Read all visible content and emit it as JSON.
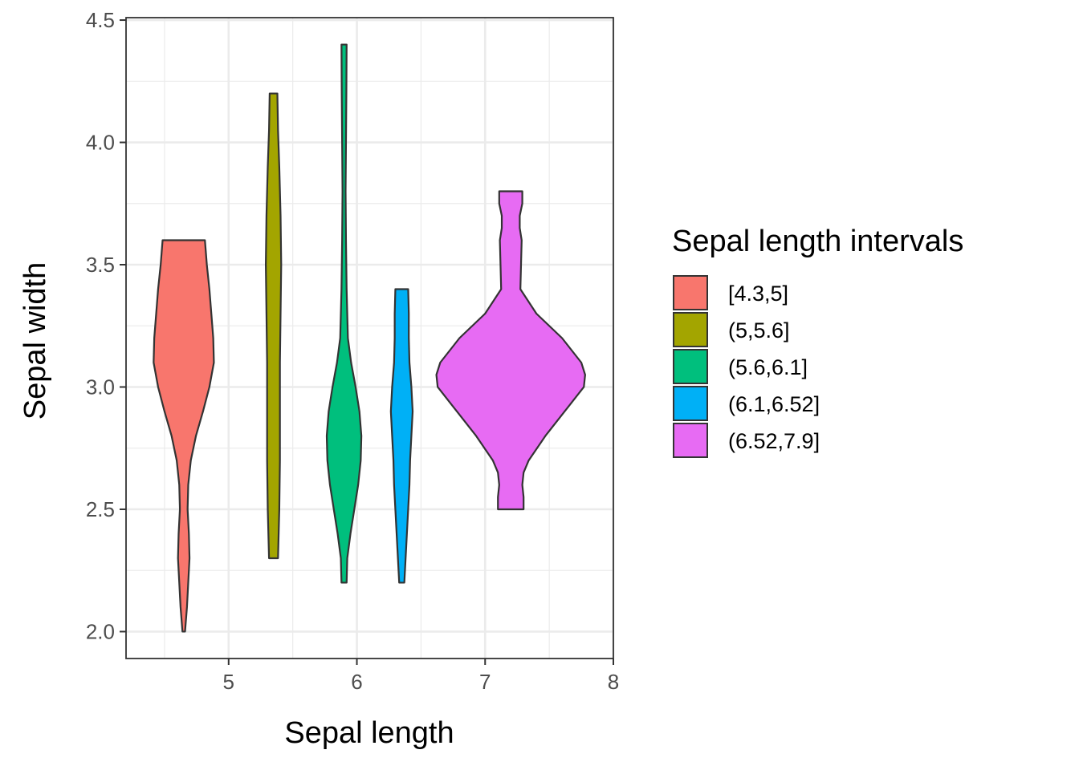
{
  "chart_data": {
    "type": "violin",
    "xlabel": "Sepal length",
    "ylabel": "Sepal width",
    "xlim": [
      4.2,
      8.0
    ],
    "ylim": [
      1.89,
      4.51
    ],
    "x_ticks": [
      5,
      6,
      7,
      8
    ],
    "x_tick_labels": [
      "5",
      "6",
      "7",
      "8"
    ],
    "y_ticks": [
      2.0,
      2.5,
      3.0,
      3.5,
      4.0,
      4.5
    ],
    "y_tick_labels": [
      "2.0",
      "2.5",
      "3.0",
      "3.5",
      "4.0",
      "4.5"
    ],
    "grid": true,
    "legend": {
      "title": "Sepal length intervals",
      "position": "right",
      "entries": [
        "[4.3,5]",
        "(5,5.6]",
        "(5.6,6.1]",
        "(6.1,6.52]",
        "(6.52,7.9]"
      ]
    },
    "series": [
      {
        "name": "[4.3,5]",
        "color": "#F8766D",
        "x_center": 4.65,
        "y_min": 2.0,
        "y_max": 3.6,
        "profile": [
          [
            2.0,
            0.01
          ],
          [
            2.1,
            0.025
          ],
          [
            2.2,
            0.035
          ],
          [
            2.3,
            0.045
          ],
          [
            2.4,
            0.04
          ],
          [
            2.5,
            0.03
          ],
          [
            2.6,
            0.035
          ],
          [
            2.7,
            0.055
          ],
          [
            2.8,
            0.095
          ],
          [
            2.9,
            0.15
          ],
          [
            3.0,
            0.2
          ],
          [
            3.1,
            0.235
          ],
          [
            3.2,
            0.23
          ],
          [
            3.3,
            0.215
          ],
          [
            3.4,
            0.2
          ],
          [
            3.5,
            0.18
          ],
          [
            3.6,
            0.165
          ]
        ]
      },
      {
        "name": "(5,5.6]",
        "color": "#A3A500",
        "x_center": 5.35,
        "y_min": 2.3,
        "y_max": 4.2,
        "profile": [
          [
            2.3,
            0.035
          ],
          [
            2.5,
            0.045
          ],
          [
            2.7,
            0.05
          ],
          [
            2.9,
            0.05
          ],
          [
            3.1,
            0.05
          ],
          [
            3.3,
            0.055
          ],
          [
            3.5,
            0.06
          ],
          [
            3.7,
            0.055
          ],
          [
            3.9,
            0.045
          ],
          [
            4.05,
            0.035
          ],
          [
            4.2,
            0.03
          ]
        ]
      },
      {
        "name": "(5.6,6.1]",
        "color": "#00BF7D",
        "x_center": 5.9,
        "y_min": 2.2,
        "y_max": 4.4,
        "profile": [
          [
            2.2,
            0.02
          ],
          [
            2.3,
            0.025
          ],
          [
            2.4,
            0.05
          ],
          [
            2.5,
            0.08
          ],
          [
            2.6,
            0.11
          ],
          [
            2.7,
            0.13
          ],
          [
            2.8,
            0.135
          ],
          [
            2.9,
            0.12
          ],
          [
            3.0,
            0.09
          ],
          [
            3.1,
            0.055
          ],
          [
            3.2,
            0.03
          ],
          [
            3.4,
            0.02
          ],
          [
            3.6,
            0.015
          ],
          [
            3.8,
            0.012
          ],
          [
            4.0,
            0.015
          ],
          [
            4.2,
            0.018
          ],
          [
            4.4,
            0.02
          ]
        ]
      },
      {
        "name": "(6.1,6.52]",
        "color": "#00B0F6",
        "x_center": 6.35,
        "y_min": 2.2,
        "y_max": 3.4,
        "profile": [
          [
            2.2,
            0.02
          ],
          [
            2.3,
            0.03
          ],
          [
            2.4,
            0.04
          ],
          [
            2.5,
            0.05
          ],
          [
            2.6,
            0.06
          ],
          [
            2.7,
            0.065
          ],
          [
            2.8,
            0.075
          ],
          [
            2.9,
            0.085
          ],
          [
            3.0,
            0.075
          ],
          [
            3.1,
            0.06
          ],
          [
            3.2,
            0.055
          ],
          [
            3.3,
            0.055
          ],
          [
            3.4,
            0.05
          ]
        ]
      },
      {
        "name": "(6.52,7.9]",
        "color": "#E76BF3",
        "x_center": 7.2,
        "y_min": 2.5,
        "y_max": 3.8,
        "profile": [
          [
            2.5,
            0.1
          ],
          [
            2.55,
            0.1
          ],
          [
            2.6,
            0.09
          ],
          [
            2.65,
            0.1
          ],
          [
            2.7,
            0.14
          ],
          [
            2.8,
            0.27
          ],
          [
            2.9,
            0.42
          ],
          [
            3.0,
            0.57
          ],
          [
            3.05,
            0.58
          ],
          [
            3.1,
            0.55
          ],
          [
            3.2,
            0.4
          ],
          [
            3.3,
            0.2
          ],
          [
            3.4,
            0.075
          ],
          [
            3.5,
            0.08
          ],
          [
            3.6,
            0.085
          ],
          [
            3.65,
            0.07
          ],
          [
            3.7,
            0.07
          ],
          [
            3.75,
            0.09
          ],
          [
            3.8,
            0.09
          ]
        ]
      }
    ]
  }
}
